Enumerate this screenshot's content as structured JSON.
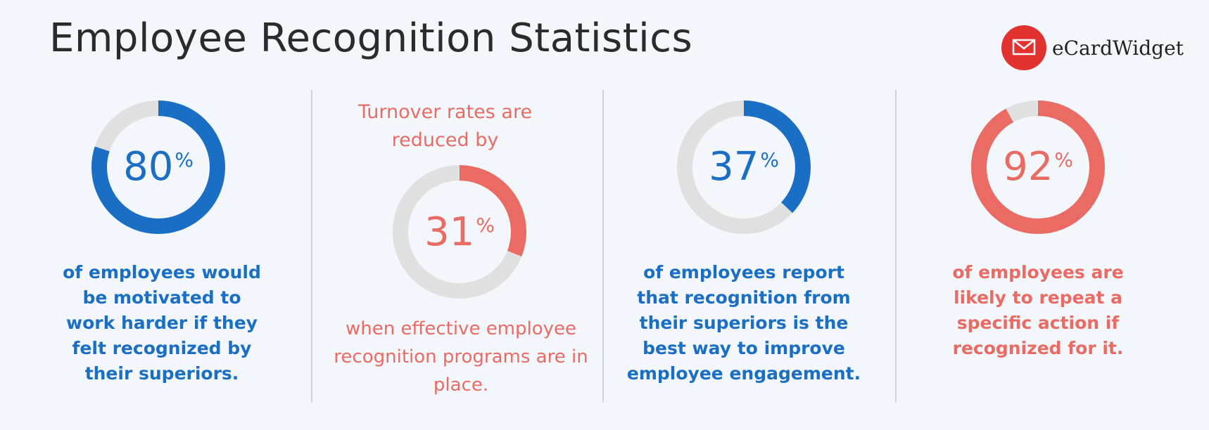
{
  "title": "Employee Recognition Statistics",
  "logo": {
    "text": "eCardWidget",
    "icon": "envelope-icon",
    "color": "#e2322f"
  },
  "colors": {
    "blue": "#1a6fc4",
    "red": "#e96b63",
    "track": "#e0e0e0"
  },
  "chart_data": {
    "type": "donut",
    "items": [
      {
        "value": 80,
        "unit": "%",
        "color": "blue",
        "caption": "of employees would be motivated to work harder if they felt recognized by their superiors."
      },
      {
        "value": 31,
        "unit": "%",
        "color": "red",
        "pre_caption": "Turnover rates are reduced by",
        "caption": "when effective employee recognition programs are in place."
      },
      {
        "value": 37,
        "unit": "%",
        "color": "blue",
        "caption": "of employees report that recognition from their superiors is the best way to improve employee engagement."
      },
      {
        "value": 92,
        "unit": "%",
        "color": "red",
        "caption": "of employees are likely to repeat a specific action if recognized for it."
      }
    ]
  }
}
